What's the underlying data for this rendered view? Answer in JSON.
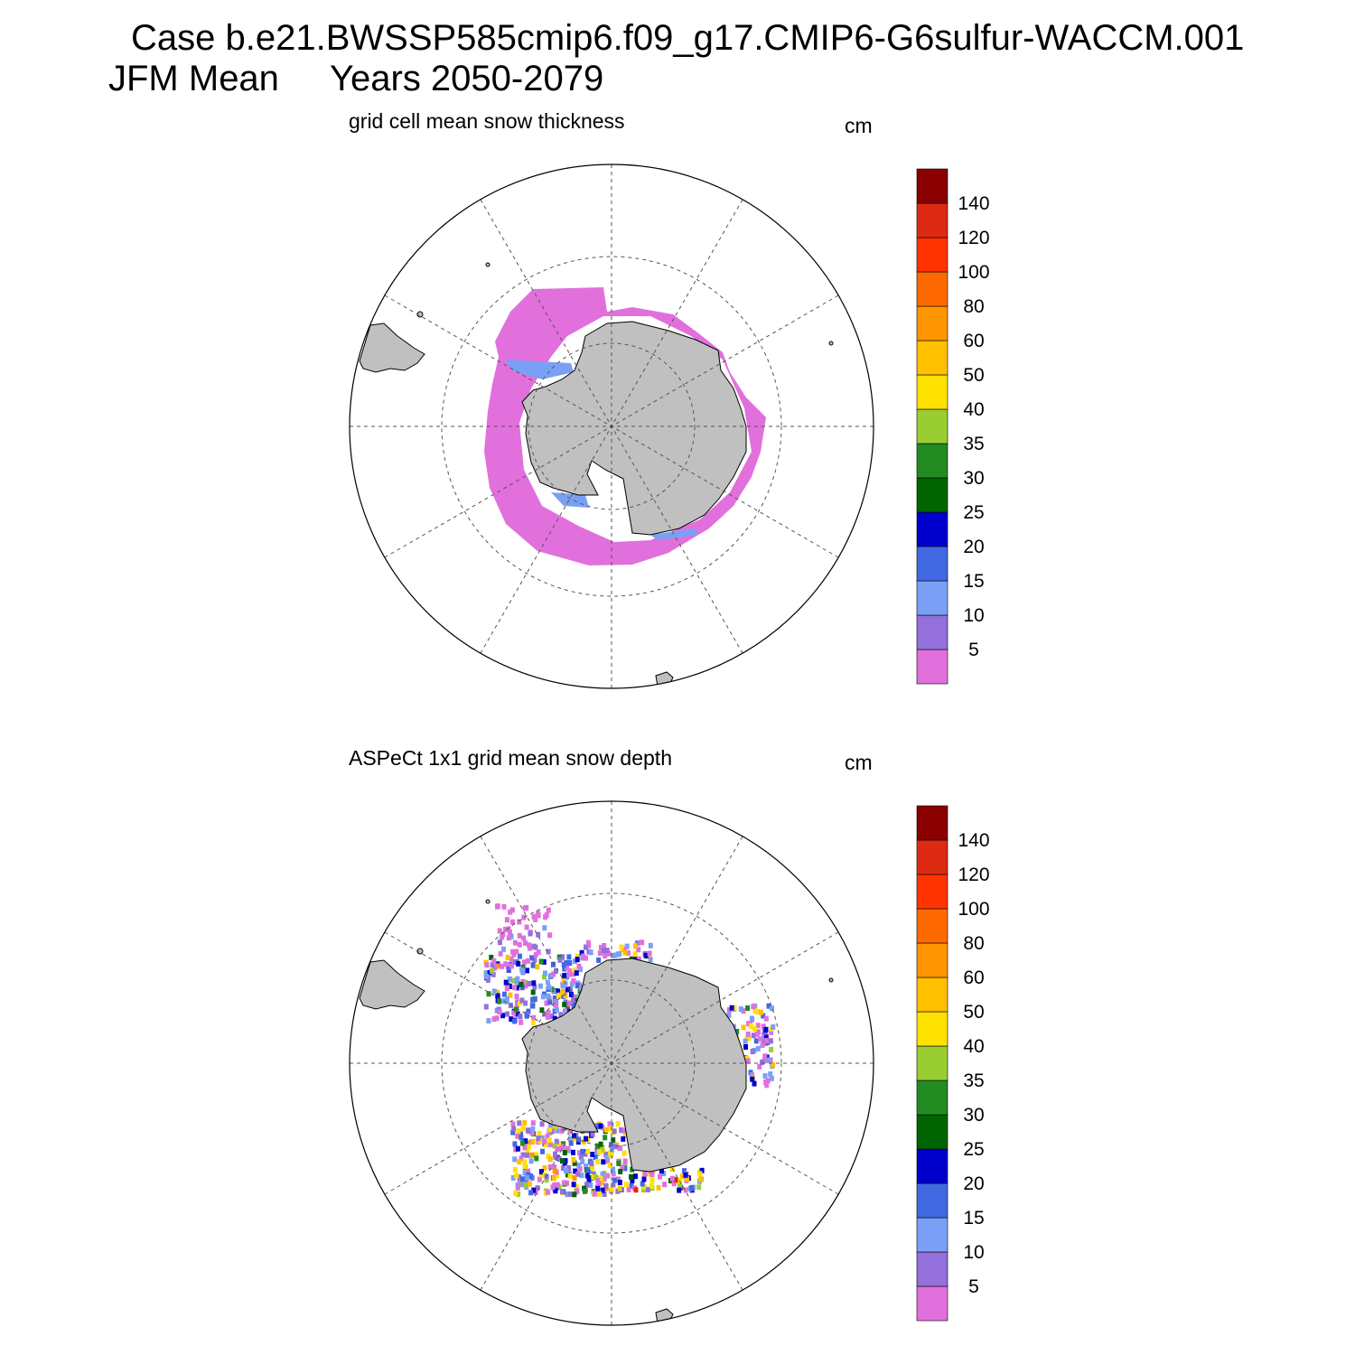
{
  "header": {
    "line1": "Case b.e21.BWSSP585cmip6.f09_g17.CMIP6-G6sulfur-WACCM.001",
    "line2_left": "JFM Mean",
    "line2_right": "Years 2050-2079"
  },
  "panels": [
    {
      "title": "grid cell mean snow thickness",
      "unit": "cm"
    },
    {
      "title": "ASPeCt 1x1 grid mean snow depth",
      "unit": "cm"
    }
  ],
  "colorbar": {
    "labels": [
      "5",
      "10",
      "15",
      "20",
      "25",
      "30",
      "35",
      "40",
      "50",
      "60",
      "80",
      "100",
      "120",
      "140"
    ],
    "colors": [
      "#e170dd",
      "#9370db",
      "#7aa0f5",
      "#4169e1",
      "#0000cd",
      "#006400",
      "#228b22",
      "#9acd32",
      "#ffe100",
      "#ffc000",
      "#ff9500",
      "#ff6a00",
      "#ff3300",
      "#dd2a12",
      "#8b0000"
    ]
  },
  "colors": {
    "land": "#c0c0c0",
    "low_snow": "#e170dd"
  }
}
